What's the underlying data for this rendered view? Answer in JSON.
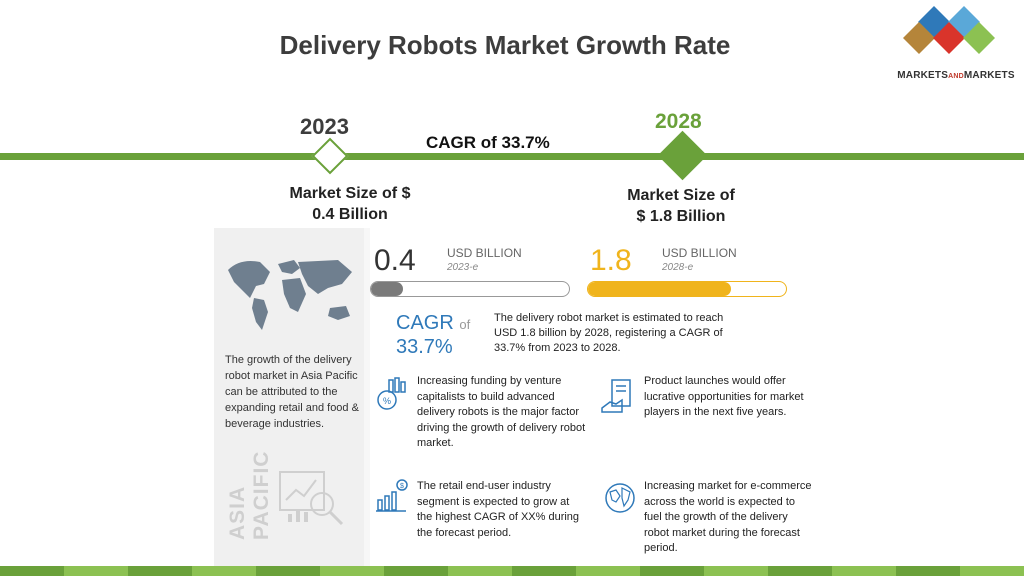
{
  "header": {
    "title": "Delivery Robots Market Growth Rate"
  },
  "logo": {
    "text_part1": "MARKETS",
    "text_and": "AND",
    "text_part2": "MARKETS"
  },
  "timeline": {
    "start_year": "2023",
    "end_year": "2028",
    "cagr_label": "CAGR of 33.7%",
    "start_size_line1": "Market Size of $",
    "start_size_line2": "0.4 Billion",
    "end_size_line1": "Market Size of",
    "end_size_line2": "$ 1.8 Billion"
  },
  "infographic": {
    "value_2023": "0.4",
    "unit_2023": "USD BILLION",
    "sub_2023": "2023-e",
    "value_2028": "1.8",
    "unit_2028": "USD BILLION",
    "sub_2028": "2028-e",
    "bar_2023_fraction": 0.16,
    "bar_2028_fraction": 0.72,
    "cagr_word": "CAGR",
    "cagr_of": "of",
    "cagr_value": "33.7%",
    "cagr_description": "The delivery robot market is estimated to reach USD 1.8 billion by 2028, registering a CAGR of 33.7% from 2023 to 2028.",
    "region_growth": "The growth of the delivery robot market in Asia Pacific can be attributed to the expanding retail and food & beverage industries.",
    "region_line1": "ASIA",
    "region_line2": "PACIFIC",
    "insights": [
      {
        "icon": "funding-icon",
        "text": "Increasing funding by venture capitalists to build advanced delivery robots is the major factor driving the growth of delivery robot market."
      },
      {
        "icon": "product-launch-icon",
        "text": "Product launches would offer lucrative opportunities for market players in the next five years."
      },
      {
        "icon": "retail-growth-icon",
        "text": "The retail end-user industry segment is expected to grow at the highest CAGR of XX% during the forecast period."
      },
      {
        "icon": "globe-icon",
        "text": "Increasing market for e-commerce across the world is expected to fuel the growth of the delivery robot market during the forecast period."
      }
    ]
  },
  "colors": {
    "accent_green": "#6aa13a",
    "accent_yellow": "#f0b41c",
    "cagr_blue": "#2f79b9",
    "footer": [
      "#6aa13a",
      "#8cc152",
      "#6aa13a",
      "#8cc152",
      "#6aa13a",
      "#8cc152",
      "#6aa13a",
      "#8cc152",
      "#6aa13a",
      "#8cc152",
      "#6aa13a",
      "#8cc152",
      "#6aa13a",
      "#8cc152",
      "#6aa13a",
      "#8cc152"
    ]
  }
}
